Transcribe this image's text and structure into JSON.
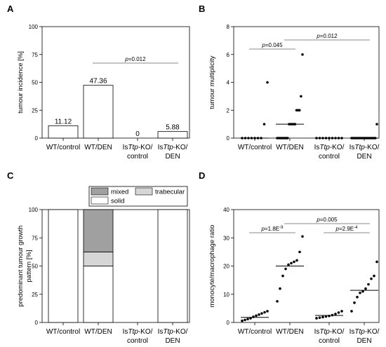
{
  "chart_data": [
    {
      "panel": "A",
      "type": "bar",
      "categories": [
        [
          "WT/control"
        ],
        [
          "WT/DEN"
        ],
        [
          "Is",
          "Ttp",
          "-KO/",
          "control"
        ],
        [
          "Is",
          "Ttp",
          "-KO/",
          "DEN"
        ]
      ],
      "values": [
        11.12,
        47.36,
        0,
        5.88
      ],
      "data_labels": [
        "11.12",
        "47.36",
        "0",
        "5.88"
      ],
      "ylabel": "tumour incidence [%]",
      "ylim": [
        0,
        100
      ],
      "yticks": [
        "0",
        "25",
        "50",
        "75",
        "100"
      ],
      "annotations": [
        {
          "text": "p=0.012",
          "from": 1,
          "to": 3
        }
      ]
    },
    {
      "panel": "B",
      "type": "scatter",
      "categories": [
        [
          "WT/control"
        ],
        [
          "WT/DEN"
        ],
        [
          "Is",
          "Ttp",
          "-KO/",
          "control"
        ],
        [
          "Is",
          "Ttp",
          "-KO/",
          "DEN"
        ]
      ],
      "points": [
        [
          0,
          0,
          0,
          0,
          0,
          0,
          0,
          1,
          4
        ],
        [
          0,
          0,
          0,
          0,
          0,
          0,
          0,
          0,
          1,
          1,
          1,
          1,
          1,
          2,
          2,
          2,
          3,
          6
        ],
        [
          0,
          0,
          0,
          0,
          0,
          0,
          0,
          0,
          0
        ],
        [
          0,
          0,
          0,
          0,
          0,
          0,
          0,
          0,
          0,
          0,
          0,
          0,
          0,
          0,
          0,
          0,
          1
        ]
      ],
      "medians": [
        0,
        1,
        0,
        0
      ],
      "ylabel": "tumour multiplicity",
      "ylim": [
        0,
        8
      ],
      "yticks": [
        "0",
        "2",
        "4",
        "6",
        "8"
      ],
      "annotations": [
        {
          "text": "p=0.045",
          "from": 0,
          "to": 1
        },
        {
          "text": "p=0.012",
          "from": 1,
          "to": 3
        }
      ]
    },
    {
      "panel": "C",
      "type": "bar",
      "stacked": true,
      "categories": [
        [
          "WT/control"
        ],
        [
          "WT/DEN"
        ],
        [
          "Is",
          "Ttp",
          "-KO/",
          "control"
        ],
        [
          "Is",
          "Ttp",
          "-KO/",
          "DEN"
        ]
      ],
      "series": [
        {
          "name": "solid",
          "values": [
            100,
            50,
            0,
            100
          ],
          "color": "#ffffff"
        },
        {
          "name": "trabecular",
          "values": [
            0,
            12.5,
            0,
            0
          ],
          "color": "#d6d6d6"
        },
        {
          "name": "mixed",
          "values": [
            0,
            37.5,
            0,
            0
          ],
          "color": "#a0a0a0"
        }
      ],
      "ylabel": [
        "predominant tumour growth",
        "pattern [%]"
      ],
      "ylim": [
        0,
        100
      ],
      "yticks": [
        "0",
        "25",
        "50",
        "75",
        "100"
      ],
      "legend": [
        "mixed",
        "trabecular",
        "solid"
      ]
    },
    {
      "panel": "D",
      "type": "scatter",
      "categories": [
        [
          "WT/control"
        ],
        [
          "WT/DEN"
        ],
        [
          "Is",
          "Ttp",
          "-KO/",
          "control"
        ],
        [
          "Is",
          "Ttp",
          "-KO/",
          "DEN"
        ]
      ],
      "points": [
        [
          0.6,
          0.9,
          1.2,
          1.5,
          2.0,
          2.4,
          2.8,
          3.2,
          3.6,
          4.0
        ],
        [
          7.5,
          12.0,
          16.5,
          19.0,
          20.5,
          21.0,
          21.5,
          22.0,
          25.0,
          30.5
        ],
        [
          1.5,
          1.7,
          1.9,
          2.1,
          2.3,
          2.6,
          3.0,
          3.5,
          4.0
        ],
        [
          4.0,
          7.0,
          9.0,
          10.5,
          11.0,
          12.0,
          13.5,
          15.5,
          16.5,
          21.5
        ]
      ],
      "medians": [
        1.8,
        20.0,
        2.5,
        11.4
      ],
      "ylabel": "monocyte/macrophage ratio",
      "ylim": [
        0,
        40
      ],
      "yticks": [
        "0",
        "10",
        "20",
        "30",
        "40"
      ],
      "annotations": [
        {
          "text": "p=1.8E",
          "sup": "-9",
          "from": 0,
          "to": 1
        },
        {
          "text": "p=0.005",
          "from": 1,
          "to": 3
        },
        {
          "text": "p=2.9E",
          "sup": "-4",
          "from": 2,
          "to": 3
        }
      ]
    }
  ]
}
